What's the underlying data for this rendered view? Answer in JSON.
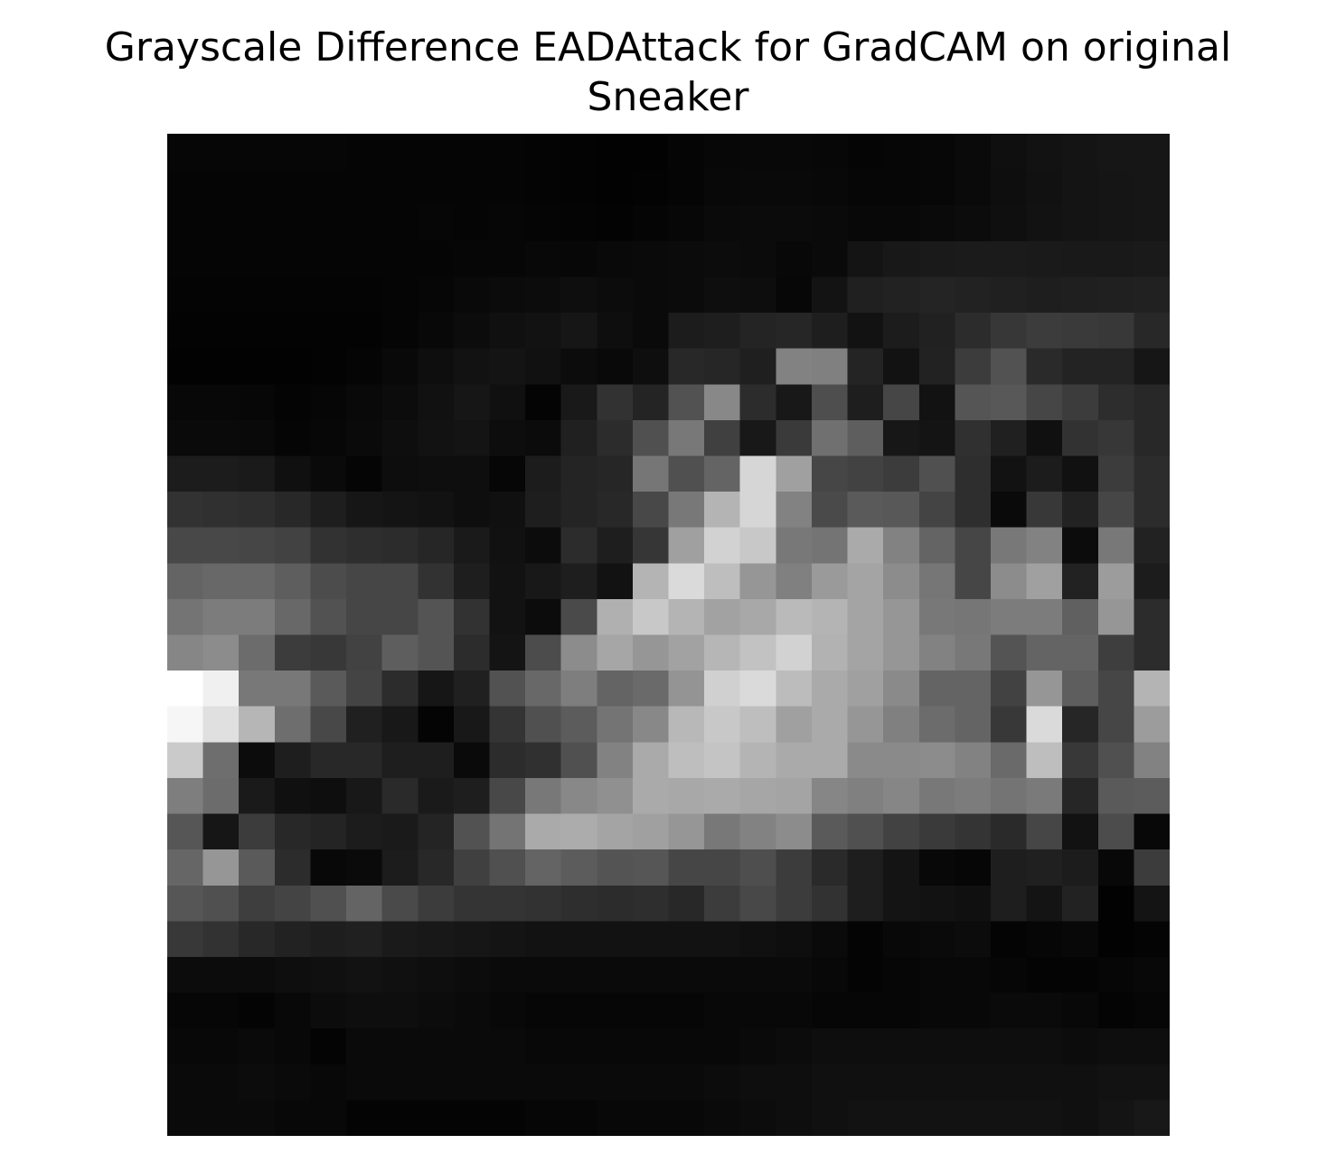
{
  "chart_data": {
    "type": "heatmap",
    "title_lines": [
      "Grayscale Difference EADAttack for GradCAM on original",
      "Sneaker"
    ],
    "colormap": "gray",
    "value_range": [
      0,
      255
    ],
    "axes": "off",
    "rows": 28,
    "cols": 28,
    "values": [
      [
        6,
        6,
        6,
        6,
        6,
        5,
        5,
        5,
        5,
        5,
        4,
        3,
        2,
        2,
        5,
        7,
        8,
        8,
        7,
        5,
        6,
        7,
        10,
        15,
        18,
        20,
        22,
        22
      ],
      [
        5,
        5,
        5,
        5,
        5,
        5,
        5,
        5,
        5,
        5,
        4,
        3,
        2,
        3,
        5,
        8,
        9,
        9,
        8,
        6,
        6,
        7,
        10,
        14,
        17,
        20,
        21,
        22
      ],
      [
        5,
        5,
        5,
        5,
        5,
        5,
        5,
        6,
        5,
        6,
        5,
        4,
        3,
        5,
        7,
        10,
        11,
        11,
        10,
        8,
        8,
        10,
        12,
        15,
        18,
        20,
        21,
        22
      ],
      [
        5,
        5,
        5,
        5,
        5,
        5,
        5,
        5,
        6,
        6,
        8,
        7,
        9,
        10,
        11,
        12,
        11,
        8,
        10,
        20,
        24,
        26,
        27,
        27,
        26,
        25,
        25,
        26
      ],
      [
        4,
        4,
        4,
        4,
        4,
        4,
        5,
        6,
        9,
        11,
        12,
        14,
        12,
        10,
        11,
        14,
        13,
        7,
        19,
        32,
        34,
        36,
        34,
        32,
        30,
        31,
        32,
        33
      ],
      [
        3,
        3,
        3,
        3,
        3,
        3,
        5,
        8,
        12,
        16,
        18,
        22,
        14,
        10,
        28,
        30,
        36,
        38,
        30,
        18,
        28,
        33,
        44,
        55,
        60,
        58,
        56,
        40
      ],
      [
        2,
        2,
        2,
        2,
        3,
        5,
        9,
        14,
        18,
        20,
        17,
        12,
        9,
        14,
        40,
        38,
        31,
        130,
        128,
        36,
        18,
        34,
        60,
        82,
        42,
        35,
        35,
        22
      ],
      [
        8,
        8,
        7,
        4,
        6,
        9,
        12,
        17,
        22,
        16,
        4,
        25,
        50,
        36,
        82,
        136,
        44,
        24,
        78,
        30,
        70,
        18,
        85,
        88,
        70,
        60,
        45,
        40
      ],
      [
        10,
        10,
        9,
        5,
        7,
        10,
        14,
        18,
        20,
        13,
        11,
        32,
        44,
        80,
        120,
        64,
        24,
        58,
        112,
        94,
        23,
        20,
        48,
        32,
        16,
        50,
        55,
        40
      ],
      [
        28,
        28,
        26,
        16,
        10,
        5,
        13,
        14,
        14,
        6,
        28,
        36,
        38,
        118,
        80,
        100,
        214,
        160,
        70,
        66,
        60,
        80,
        46,
        18,
        28,
        17,
        60,
        44
      ],
      [
        50,
        48,
        46,
        40,
        30,
        22,
        20,
        18,
        14,
        16,
        30,
        36,
        40,
        72,
        120,
        180,
        214,
        130,
        74,
        90,
        88,
        68,
        46,
        10,
        56,
        34,
        70,
        44
      ],
      [
        72,
        72,
        70,
        66,
        50,
        46,
        44,
        38,
        26,
        17,
        12,
        44,
        30,
        54,
        160,
        210,
        200,
        120,
        116,
        170,
        130,
        100,
        70,
        120,
        130,
        12,
        120,
        34
      ],
      [
        100,
        104,
        104,
        94,
        76,
        70,
        70,
        50,
        30,
        18,
        24,
        30,
        18,
        180,
        218,
        190,
        150,
        128,
        154,
        164,
        140,
        118,
        70,
        140,
        160,
        34,
        156,
        28
      ],
      [
        116,
        124,
        124,
        104,
        82,
        70,
        70,
        84,
        50,
        18,
        12,
        74,
        176,
        200,
        180,
        162,
        168,
        186,
        180,
        164,
        150,
        120,
        118,
        124,
        124,
        96,
        150,
        44
      ],
      [
        134,
        140,
        108,
        60,
        56,
        66,
        94,
        84,
        44,
        20,
        76,
        140,
        166,
        150,
        162,
        182,
        194,
        210,
        178,
        164,
        150,
        130,
        120,
        84,
        100,
        100,
        62,
        44
      ],
      [
        255,
        240,
        120,
        120,
        90,
        68,
        44,
        22,
        32,
        82,
        104,
        126,
        100,
        106,
        148,
        208,
        218,
        188,
        170,
        160,
        138,
        100,
        100,
        66,
        150,
        94,
        70,
        180
      ],
      [
        246,
        224,
        182,
        110,
        72,
        32,
        24,
        4,
        24,
        52,
        80,
        92,
        116,
        136,
        184,
        200,
        190,
        160,
        170,
        150,
        128,
        108,
        100,
        56,
        218,
        38,
        70,
        156
      ],
      [
        202,
        110,
        12,
        30,
        40,
        40,
        30,
        30,
        10,
        44,
        48,
        80,
        130,
        170,
        190,
        196,
        180,
        170,
        170,
        138,
        138,
        140,
        130,
        106,
        190,
        56,
        80,
        130
      ],
      [
        126,
        108,
        26,
        16,
        14,
        24,
        42,
        26,
        30,
        72,
        120,
        136,
        144,
        170,
        168,
        170,
        166,
        164,
        134,
        128,
        134,
        120,
        124,
        116,
        122,
        38,
        90,
        92
      ],
      [
        86,
        22,
        60,
        40,
        36,
        28,
        26,
        36,
        82,
        116,
        170,
        172,
        164,
        160,
        150,
        120,
        130,
        140,
        90,
        80,
        66,
        58,
        52,
        42,
        70,
        18,
        76,
        8
      ],
      [
        102,
        150,
        90,
        44,
        8,
        10,
        28,
        40,
        64,
        80,
        100,
        92,
        84,
        86,
        70,
        70,
        78,
        60,
        42,
        30,
        20,
        8,
        6,
        30,
        32,
        28,
        8,
        60
      ],
      [
        86,
        80,
        62,
        68,
        80,
        100,
        74,
        60,
        52,
        52,
        50,
        46,
        44,
        46,
        40,
        60,
        72,
        60,
        50,
        30,
        20,
        18,
        16,
        30,
        20,
        34,
        2,
        20
      ],
      [
        56,
        50,
        40,
        34,
        30,
        32,
        26,
        24,
        22,
        20,
        18,
        18,
        18,
        18,
        18,
        18,
        16,
        14,
        10,
        4,
        8,
        10,
        12,
        4,
        6,
        8,
        2,
        4
      ],
      [
        12,
        12,
        12,
        14,
        16,
        18,
        16,
        14,
        12,
        10,
        10,
        10,
        10,
        10,
        10,
        10,
        10,
        10,
        8,
        4,
        6,
        8,
        8,
        6,
        4,
        4,
        6,
        8
      ],
      [
        6,
        6,
        4,
        8,
        12,
        14,
        14,
        12,
        10,
        8,
        6,
        6,
        6,
        6,
        6,
        8,
        8,
        8,
        6,
        6,
        6,
        8,
        8,
        10,
        10,
        8,
        4,
        6
      ],
      [
        8,
        8,
        10,
        8,
        4,
        10,
        10,
        10,
        10,
        10,
        8,
        8,
        8,
        8,
        8,
        8,
        10,
        12,
        14,
        14,
        14,
        14,
        14,
        14,
        14,
        12,
        14,
        14
      ],
      [
        10,
        10,
        12,
        10,
        8,
        10,
        10,
        10,
        10,
        10,
        10,
        10,
        10,
        10,
        10,
        12,
        14,
        14,
        16,
        16,
        16,
        16,
        16,
        16,
        16,
        16,
        18,
        18
      ],
      [
        10,
        10,
        10,
        8,
        8,
        4,
        4,
        4,
        4,
        4,
        6,
        6,
        8,
        8,
        8,
        10,
        12,
        14,
        16,
        18,
        18,
        18,
        18,
        18,
        18,
        16,
        20,
        24
      ]
    ]
  }
}
